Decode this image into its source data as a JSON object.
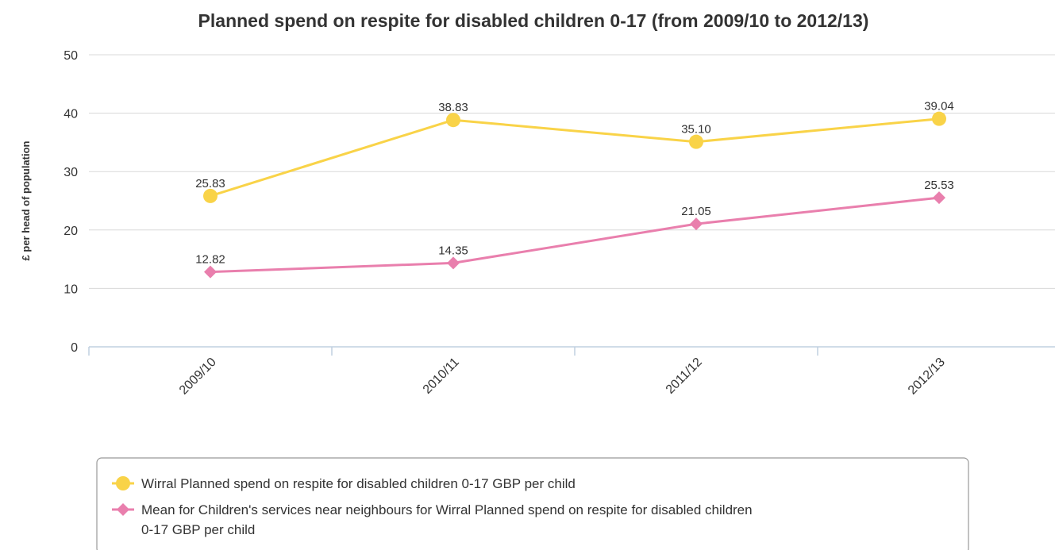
{
  "chart_data": {
    "type": "line",
    "title": "Planned spend on respite for disabled children 0-17 (from 2009/10 to 2012/13)",
    "xlabel": "",
    "ylabel": "£ per head of population",
    "ylim": [
      0,
      50
    ],
    "yticks": [
      0,
      10,
      20,
      30,
      40,
      50
    ],
    "grid": true,
    "legend_position": "bottom",
    "categories": [
      "2009/10",
      "2010/11",
      "2011/12",
      "2012/13"
    ],
    "series": [
      {
        "name": "Wirral Planned spend on respite for disabled children 0-17 GBP per child",
        "name_lines": [
          "Wirral Planned spend on respite for disabled children 0-17 GBP per child"
        ],
        "values": [
          25.83,
          38.83,
          35.1,
          39.04
        ],
        "labels": [
          "25.83",
          "38.83",
          "35.10",
          "39.04"
        ],
        "color": "#f9d348",
        "marker": "circle"
      },
      {
        "name": "Mean for Children's services near neighbours for Wirral Planned spend on respite for disabled children 0-17 GBP per child",
        "name_lines": [
          "Mean for Children's services near neighbours for Wirral Planned spend on respite for disabled children",
          "0-17 GBP per child"
        ],
        "values": [
          12.82,
          14.35,
          21.05,
          25.53
        ],
        "labels": [
          "12.82",
          "14.35",
          "21.05",
          "25.53"
        ],
        "color": "#e97fad",
        "marker": "diamond"
      }
    ]
  }
}
